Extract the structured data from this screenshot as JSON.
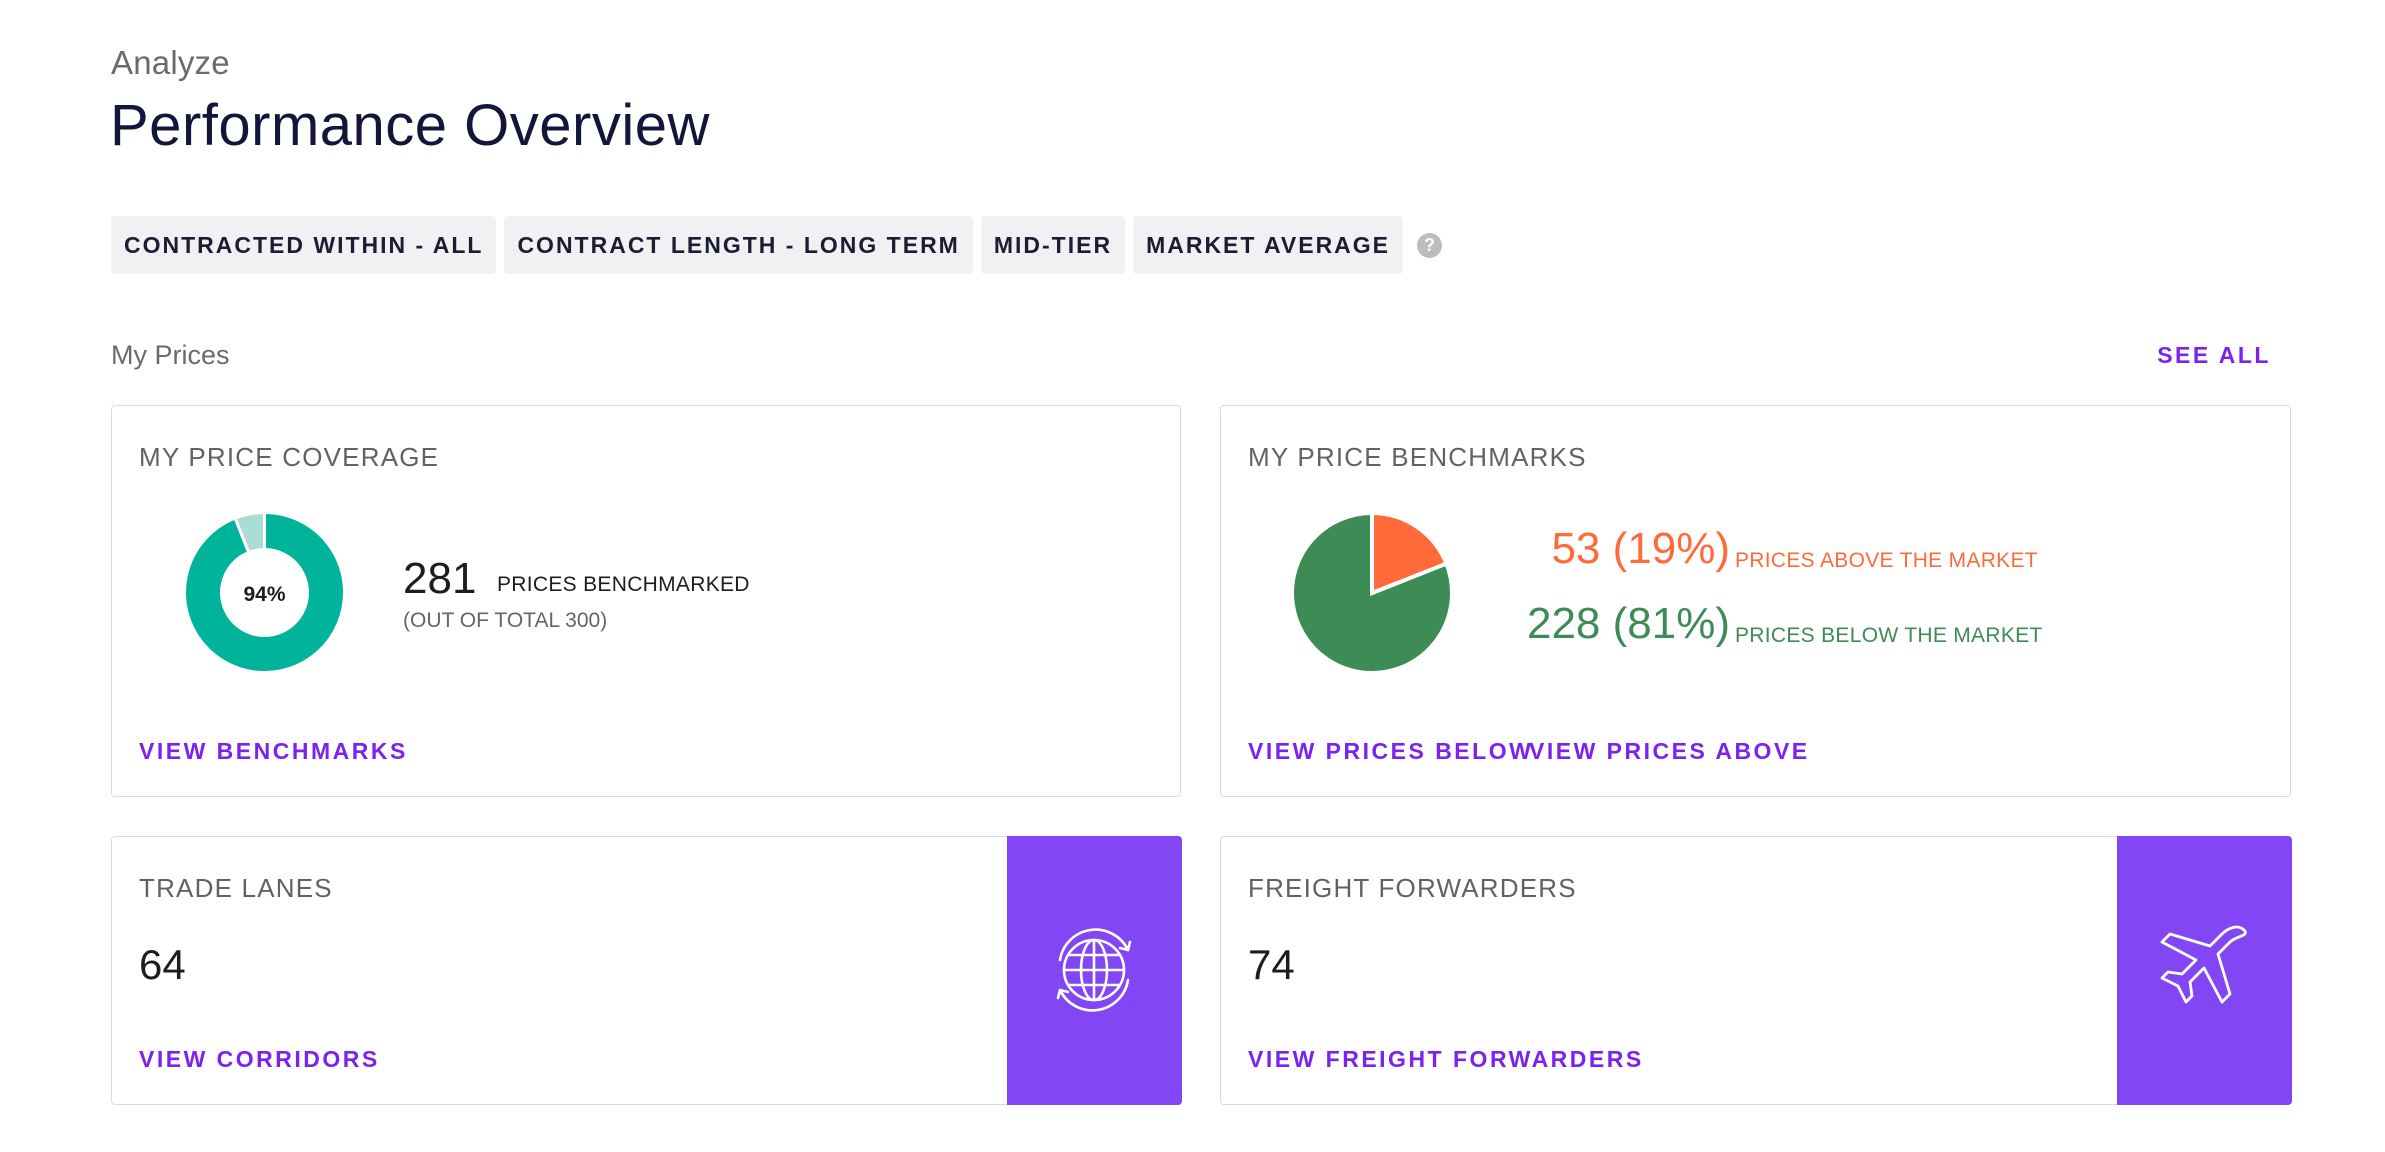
{
  "header": {
    "eyebrow": "Analyze",
    "title": "Performance Overview"
  },
  "filters": [
    {
      "label": "CONTRACTED WITHIN - ALL"
    },
    {
      "label": "CONTRACT LENGTH - LONG TERM"
    },
    {
      "label": "MID-TIER"
    },
    {
      "label": "MARKET AVERAGE"
    }
  ],
  "help_icon": {
    "glyph": "?",
    "icon": "help-icon"
  },
  "section": {
    "label": "My Prices",
    "see_all": "SEE ALL"
  },
  "coverage": {
    "title": "MY PRICE COVERAGE",
    "percent": 0.94,
    "percent_label": "94%",
    "count": "281",
    "count_label": "PRICES BENCHMARKED",
    "total_note": "(OUT OF TOTAL 300)",
    "link": "VIEW BENCHMARKS",
    "colors": {
      "filled": "#00b39b",
      "remaining": "#a9ddd6"
    }
  },
  "benchmarks": {
    "title": "MY PRICE BENCHMARKS",
    "above": {
      "value": "53 (19%)",
      "label": "PRICES ABOVE THE MARKET",
      "fraction": 0.19,
      "color": "#ff6a3a"
    },
    "below": {
      "value": "228 (81%)",
      "label": "PRICES BELOW THE MARKET",
      "fraction": 0.81,
      "color": "#3d8b55"
    },
    "link_below": "VIEW PRICES BELOW",
    "link_above": "VIEW PRICES ABOVE"
  },
  "trade_lanes": {
    "title": "TRADE LANES",
    "count": "64",
    "link": "VIEW CORRIDORS",
    "icon": "globe-refresh-icon"
  },
  "freight_forwarders": {
    "title": "FREIGHT FORWARDERS",
    "count": "74",
    "link": "VIEW FREIGHT FORWARDERS",
    "icon": "airplane-icon"
  },
  "accent_color": "#7b22f0",
  "panel_color": "#8246f5"
}
